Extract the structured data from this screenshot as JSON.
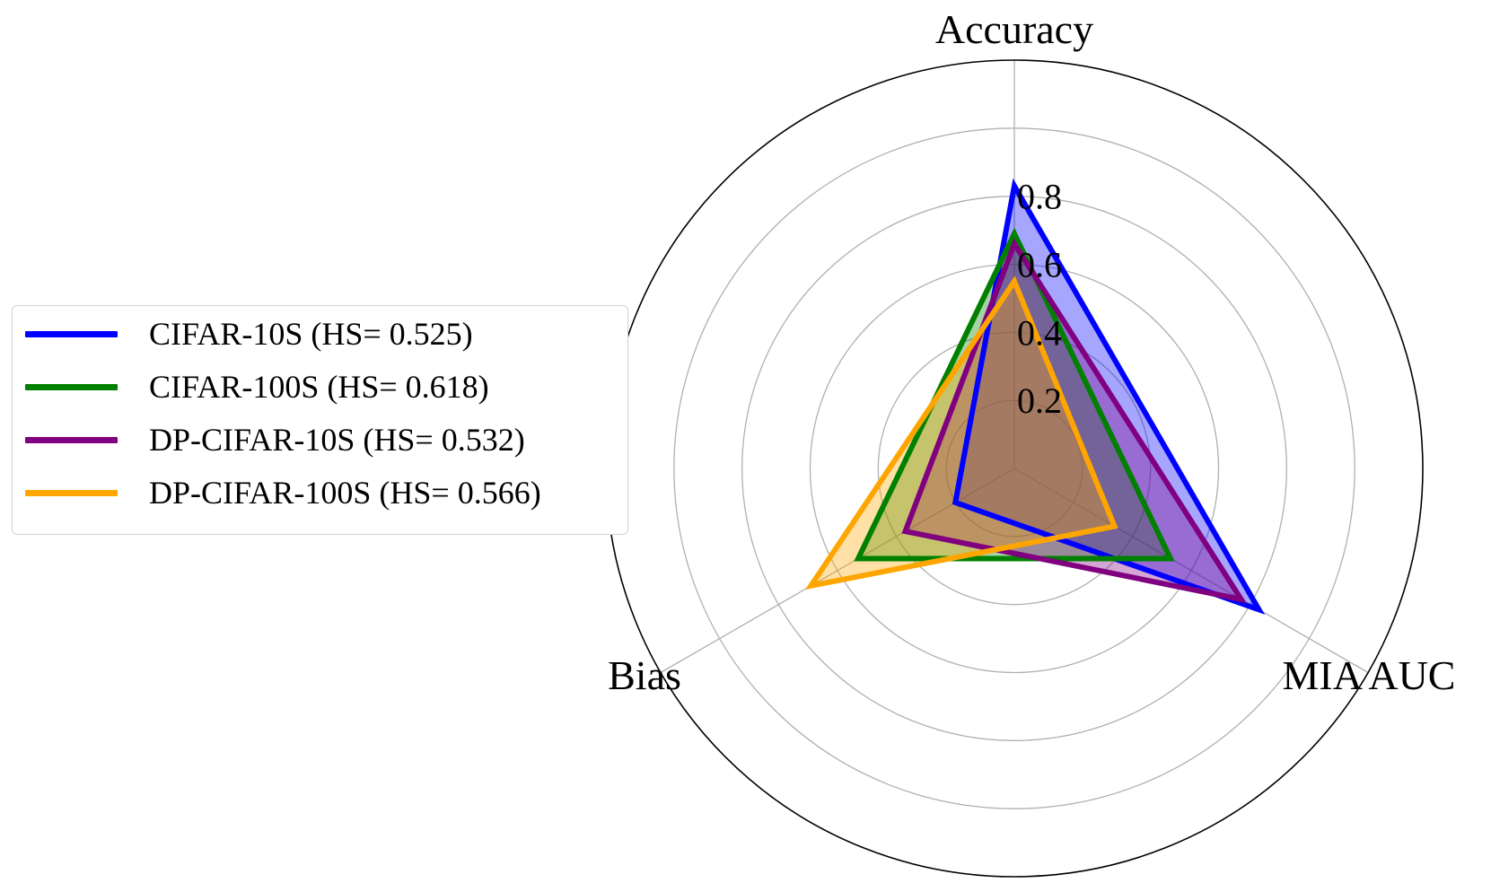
{
  "chart_data": {
    "type": "radar",
    "axes": [
      "Accuracy",
      "MIA AUC",
      "Bias"
    ],
    "radial_ticks": [
      "0.2",
      "0.4",
      "0.6",
      "0.8"
    ],
    "radial_tick_values": [
      0.2,
      0.4,
      0.6,
      0.8
    ],
    "rlim": [
      0,
      1.2
    ],
    "grid": true,
    "legend_position": "left",
    "series": [
      {
        "name": "CIFAR-10S (HS= 0.525)",
        "color": "#0000ff",
        "values": [
          0.83,
          0.83,
          0.2
        ]
      },
      {
        "name": "CIFAR-100S (HS= 0.618)",
        "color": "#008000",
        "values": [
          0.69,
          0.53,
          0.53
        ]
      },
      {
        "name": "DP-CIFAR-10S (HS= 0.532)",
        "color": "#800080",
        "values": [
          0.66,
          0.77,
          0.37
        ]
      },
      {
        "name": "DP-CIFAR-100S (HS= 0.566)",
        "color": "#ffa500",
        "values": [
          0.55,
          0.34,
          0.69
        ]
      }
    ]
  }
}
